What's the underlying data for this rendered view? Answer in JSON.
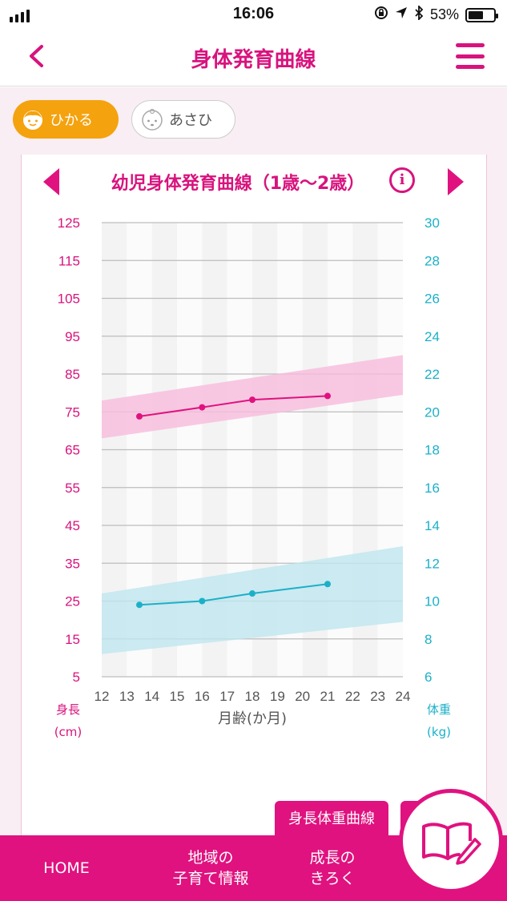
{
  "status_bar": {
    "time": "16:06",
    "battery": "53%"
  },
  "header": {
    "title": "身体発育曲線"
  },
  "children": [
    {
      "name": "ひかる",
      "active": true
    },
    {
      "name": "あさひ",
      "active": false
    }
  ],
  "chart_title": "幼児身体発育曲線（1歳〜2歳）",
  "info_label": "i",
  "chart_data": {
    "type": "line",
    "x": [
      12,
      13,
      14,
      15,
      16,
      17,
      18,
      19,
      20,
      21,
      22,
      23,
      24
    ],
    "xlabel": "月齢(か月)",
    "xlim": [
      12,
      24
    ],
    "left_axis": {
      "label_line1": "身長",
      "label_line2": "(cm)",
      "ticks": [
        125,
        115,
        105,
        95,
        85,
        75,
        65,
        55,
        45,
        35,
        25,
        15,
        5
      ],
      "lim": [
        5,
        125
      ]
    },
    "right_axis": {
      "label_line1": "体重",
      "label_line2": "(kg)",
      "ticks": [
        30,
        28,
        26,
        24,
        22,
        20,
        18,
        16,
        14,
        12,
        10,
        8,
        6
      ],
      "lim": [
        6,
        30
      ]
    },
    "bands": [
      {
        "axis": "left",
        "color": "#f7bcdc",
        "x": [
          12,
          24
        ],
        "lower": [
          68,
          79.5
        ],
        "upper": [
          78,
          90
        ]
      },
      {
        "axis": "right",
        "color": "#bfe6ef",
        "x": [
          12,
          24
        ],
        "lower": [
          7.2,
          8.9
        ],
        "upper": [
          10.4,
          12.9
        ]
      }
    ],
    "series": [
      {
        "axis": "left",
        "color": "#e0127f",
        "x": [
          13.5,
          16,
          18,
          21
        ],
        "values": [
          73.8,
          76.2,
          78.2,
          79.2
        ]
      },
      {
        "axis": "right",
        "color": "#1cb0c8",
        "x": [
          13.5,
          16,
          18,
          21
        ],
        "values": [
          9.8,
          10.0,
          10.4,
          10.9
        ]
      }
    ],
    "grid": true
  },
  "chart_button": "身長体重曲線",
  "tabbar": {
    "home": "HOME",
    "local_line1": "地域の",
    "local_line2": "子育て情報",
    "growth_line1": "成長の",
    "growth_line2": "きろく"
  },
  "colors": {
    "brand": "#e0127f",
    "accent": "#f4a20e",
    "height": "#e0127f",
    "weight": "#1cb0c8"
  }
}
